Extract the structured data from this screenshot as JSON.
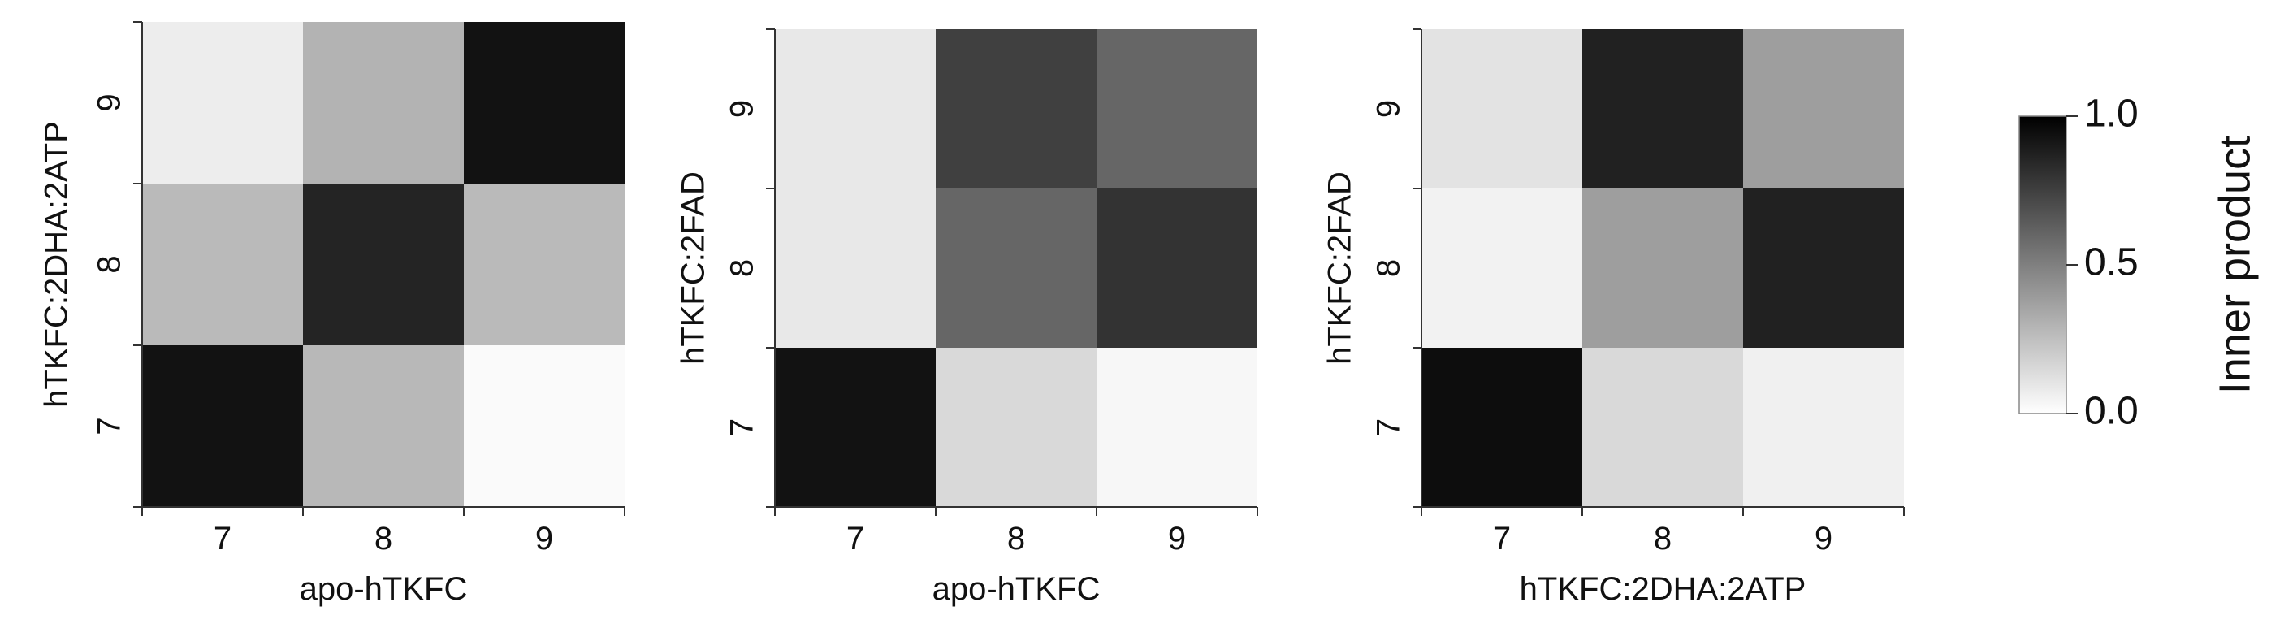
{
  "chart_data": [
    {
      "type": "heatmap",
      "xlabel": "apo-hTKFC",
      "ylabel": "hTKFC:2DHA:2ATP",
      "x_categories": [
        "7",
        "8",
        "9"
      ],
      "y_categories": [
        "7",
        "8",
        "9"
      ],
      "values": [
        [
          0.93,
          0.28,
          0.02
        ],
        [
          0.27,
          0.86,
          0.27
        ],
        [
          0.07,
          0.3,
          0.93
        ]
      ]
    },
    {
      "type": "heatmap",
      "xlabel": "apo-hTKFC",
      "ylabel": "hTKFC:2FAD",
      "x_categories": [
        "7",
        "8",
        "9"
      ],
      "y_categories": [
        "7",
        "8",
        "9"
      ],
      "values": [
        [
          0.93,
          0.15,
          0.03
        ],
        [
          0.09,
          0.6,
          0.8
        ],
        [
          0.09,
          0.75,
          0.6
        ]
      ]
    },
    {
      "type": "heatmap",
      "xlabel": "hTKFC:2DHA:2ATP",
      "ylabel": "hTKFC:2FAD",
      "x_categories": [
        "7",
        "8",
        "9"
      ],
      "y_categories": [
        "7",
        "8",
        "9"
      ],
      "values": [
        [
          0.95,
          0.15,
          0.06
        ],
        [
          0.05,
          0.38,
          0.87
        ],
        [
          0.11,
          0.87,
          0.38
        ]
      ]
    }
  ],
  "colorbar": {
    "label": "Inner product",
    "ticks": [
      "1.0",
      "0.5",
      "0.0"
    ],
    "min": 0.0,
    "max": 1.0,
    "colors": [
      "#ffffff",
      "#000000"
    ]
  }
}
